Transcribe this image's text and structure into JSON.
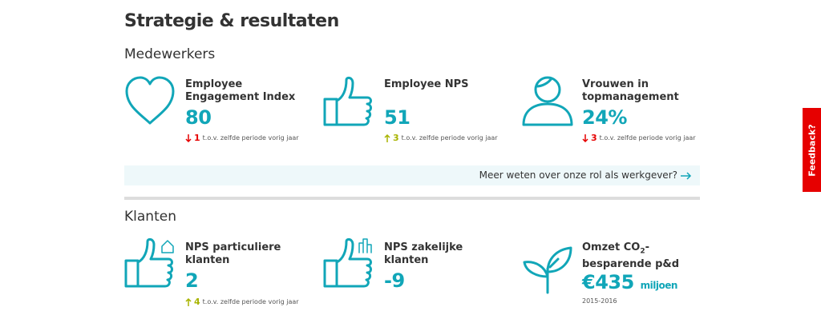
{
  "header": {
    "title": "Strategie & resultaten"
  },
  "sections": [
    {
      "title": "Medewerkers",
      "cards": [
        {
          "label": "Employee Engagement Index",
          "value": "80",
          "change": "1",
          "note": "t.o.v. zelfde periode vorig jaar"
        },
        {
          "label": "Employee NPS",
          "value": "51",
          "change": "3",
          "note": "t.o.v. zelfde periode vorig jaar"
        },
        {
          "label": "Vrouwen in topmanagement",
          "value": "24%",
          "change": "3",
          "note": "t.o.v. zelfde periode vorig jaar"
        }
      ],
      "link": "Meer weten over onze rol als werkgever?"
    },
    {
      "title": "Klanten",
      "cards": [
        {
          "label": "NPS particuliere klanten",
          "value": "2",
          "change": "4",
          "note": "t.o.v. zelfde periode vorig jaar"
        },
        {
          "label": "NPS zakelijke klanten",
          "value": "-9"
        },
        {
          "label_parts": [
            "Omzet CO",
            "2",
            "-besparende p&d"
          ],
          "value": "€435",
          "unit": "miljoen",
          "note": "2015-2016"
        }
      ]
    }
  ],
  "feedback": "Feedback?"
}
